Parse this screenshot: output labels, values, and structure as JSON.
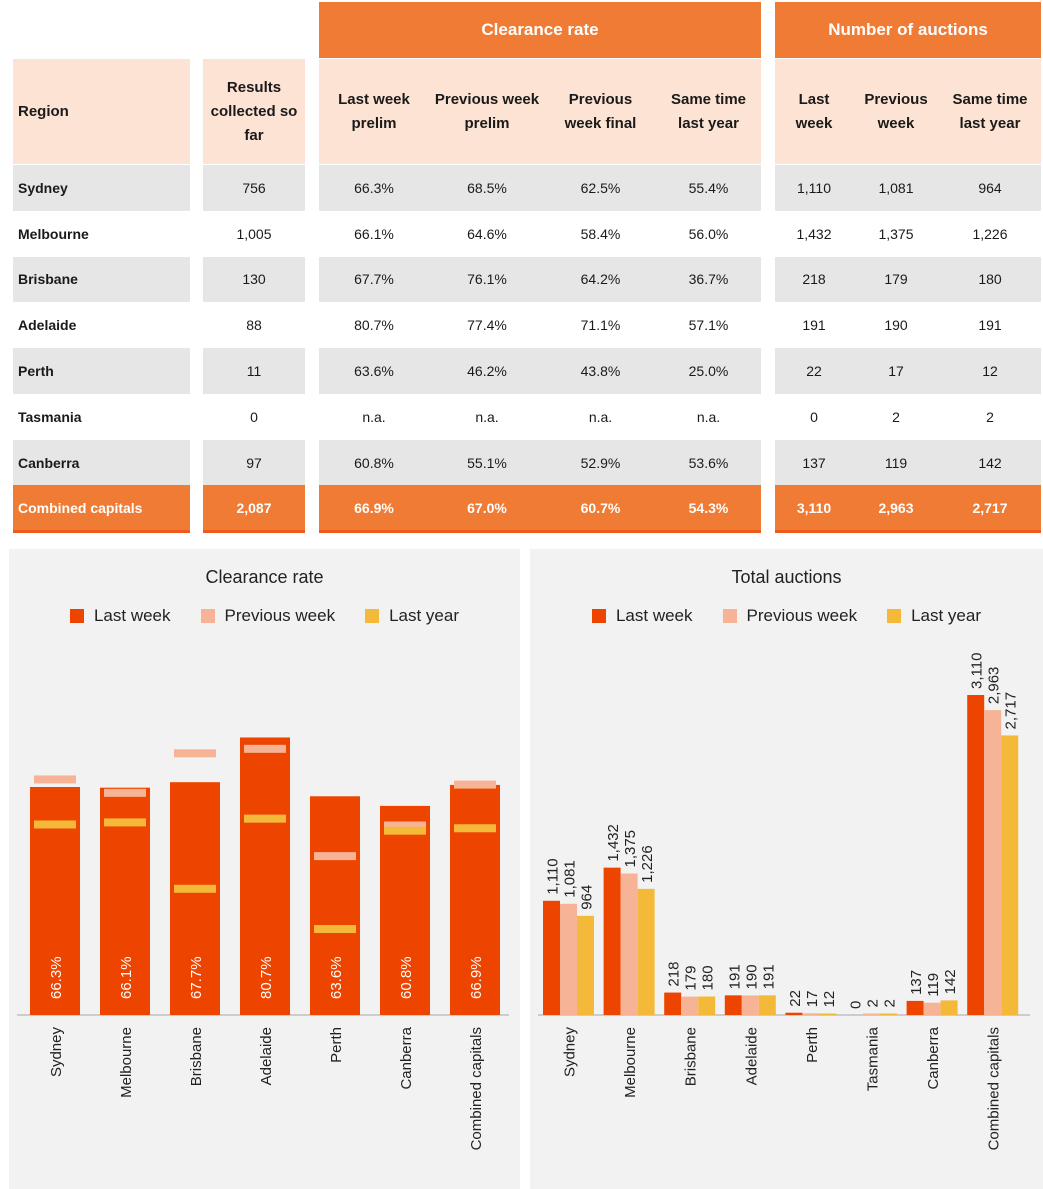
{
  "table": {
    "group_headers": {
      "clearance": "Clearance rate",
      "auctions": "Number of auctions"
    },
    "col_headers": {
      "region": "Region",
      "results": [
        "Results",
        "collected so",
        "far"
      ],
      "last_week": [
        "Last week",
        "prelim"
      ],
      "prev_prelim": [
        "Previous week",
        "prelim"
      ],
      "prev_final": [
        "Previous",
        "week final"
      ],
      "same_time": [
        "Same time",
        "last year"
      ],
      "auc_last": [
        "Last",
        "week"
      ],
      "auc_prev": [
        "Previous",
        "week"
      ],
      "auc_year": [
        "Same time",
        "last year"
      ]
    },
    "rows": [
      [
        "Sydney",
        "756",
        "66.3%",
        "68.5%",
        "62.5%",
        "55.4%",
        "1,110",
        "1,081",
        "964"
      ],
      [
        "Melbourne",
        "1,005",
        "66.1%",
        "64.6%",
        "58.4%",
        "56.0%",
        "1,432",
        "1,375",
        "1,226"
      ],
      [
        "Brisbane",
        "130",
        "67.7%",
        "76.1%",
        "64.2%",
        "36.7%",
        "218",
        "179",
        "180"
      ],
      [
        "Adelaide",
        "88",
        "80.7%",
        "77.4%",
        "71.1%",
        "57.1%",
        "191",
        "190",
        "191"
      ],
      [
        "Perth",
        "11",
        "63.6%",
        "46.2%",
        "43.8%",
        "25.0%",
        "22",
        "17",
        "12"
      ],
      [
        "Tasmania",
        "0",
        "n.a.",
        "n.a.",
        "n.a.",
        "n.a.",
        "0",
        "2",
        "2"
      ],
      [
        "Canberra",
        "97",
        "60.8%",
        "55.1%",
        "52.9%",
        "53.6%",
        "137",
        "119",
        "142"
      ]
    ],
    "combined": [
      "Combined capitals",
      "2,087",
      "66.9%",
      "67.0%",
      "60.7%",
      "54.3%",
      "3,110",
      "2,963",
      "2,717"
    ]
  },
  "colors": {
    "last_week": "#ed4400",
    "previous_week": "#f7b396",
    "last_year": "#f5b93a",
    "header_orange": "#f07b34",
    "header_peach": "#fde3d3"
  },
  "chart_data": [
    {
      "type": "bar",
      "title": "Clearance rate",
      "legend": [
        "Last week",
        "Previous week",
        "Last year"
      ],
      "legend_placement": "top-center",
      "categories": [
        "Sydney",
        "Melbourne",
        "Brisbane",
        "Adelaide",
        "Perth",
        "Canberra",
        "Combined capitals"
      ],
      "series": [
        {
          "name": "Last week",
          "values": [
            66.3,
            66.1,
            67.7,
            80.7,
            63.6,
            60.8,
            66.9
          ],
          "labels": [
            "66.3%",
            "66.1%",
            "67.7%",
            "80.7%",
            "63.6%",
            "60.8%",
            "66.9%"
          ]
        },
        {
          "name": "Previous week",
          "values": [
            68.5,
            64.6,
            76.1,
            77.4,
            46.2,
            55.1,
            67.0
          ]
        },
        {
          "name": "Last year",
          "values": [
            55.4,
            56.0,
            36.7,
            57.1,
            25.0,
            53.6,
            54.3
          ]
        }
      ],
      "ylim": [
        0,
        90
      ],
      "grid": false
    },
    {
      "type": "bar",
      "title": "Total auctions",
      "legend": [
        "Last week",
        "Previous week",
        "Last year"
      ],
      "legend_placement": "top-center",
      "categories": [
        "Sydney",
        "Melbourne",
        "Brisbane",
        "Adelaide",
        "Perth",
        "Tasmania",
        "Canberra",
        "Combined capitals"
      ],
      "series": [
        {
          "name": "Last week",
          "values": [
            1110,
            1432,
            218,
            191,
            22,
            0,
            137,
            3110
          ],
          "labels": [
            "1,110",
            "1,432",
            "218",
            "191",
            "22",
            "0",
            "137",
            "3,110"
          ]
        },
        {
          "name": "Previous week",
          "values": [
            1081,
            1375,
            179,
            190,
            17,
            2,
            119,
            2963
          ],
          "labels": [
            "1,081",
            "1,375",
            "179",
            "190",
            "17",
            "2",
            "119",
            "2,963"
          ]
        },
        {
          "name": "Last year",
          "values": [
            964,
            1226,
            180,
            191,
            12,
            2,
            142,
            2717
          ],
          "labels": [
            "964",
            "1,226",
            "180",
            "191",
            "12",
            "2",
            "142",
            "2,717"
          ]
        }
      ],
      "ylim": [
        0,
        3500
      ],
      "grid": false
    }
  ]
}
